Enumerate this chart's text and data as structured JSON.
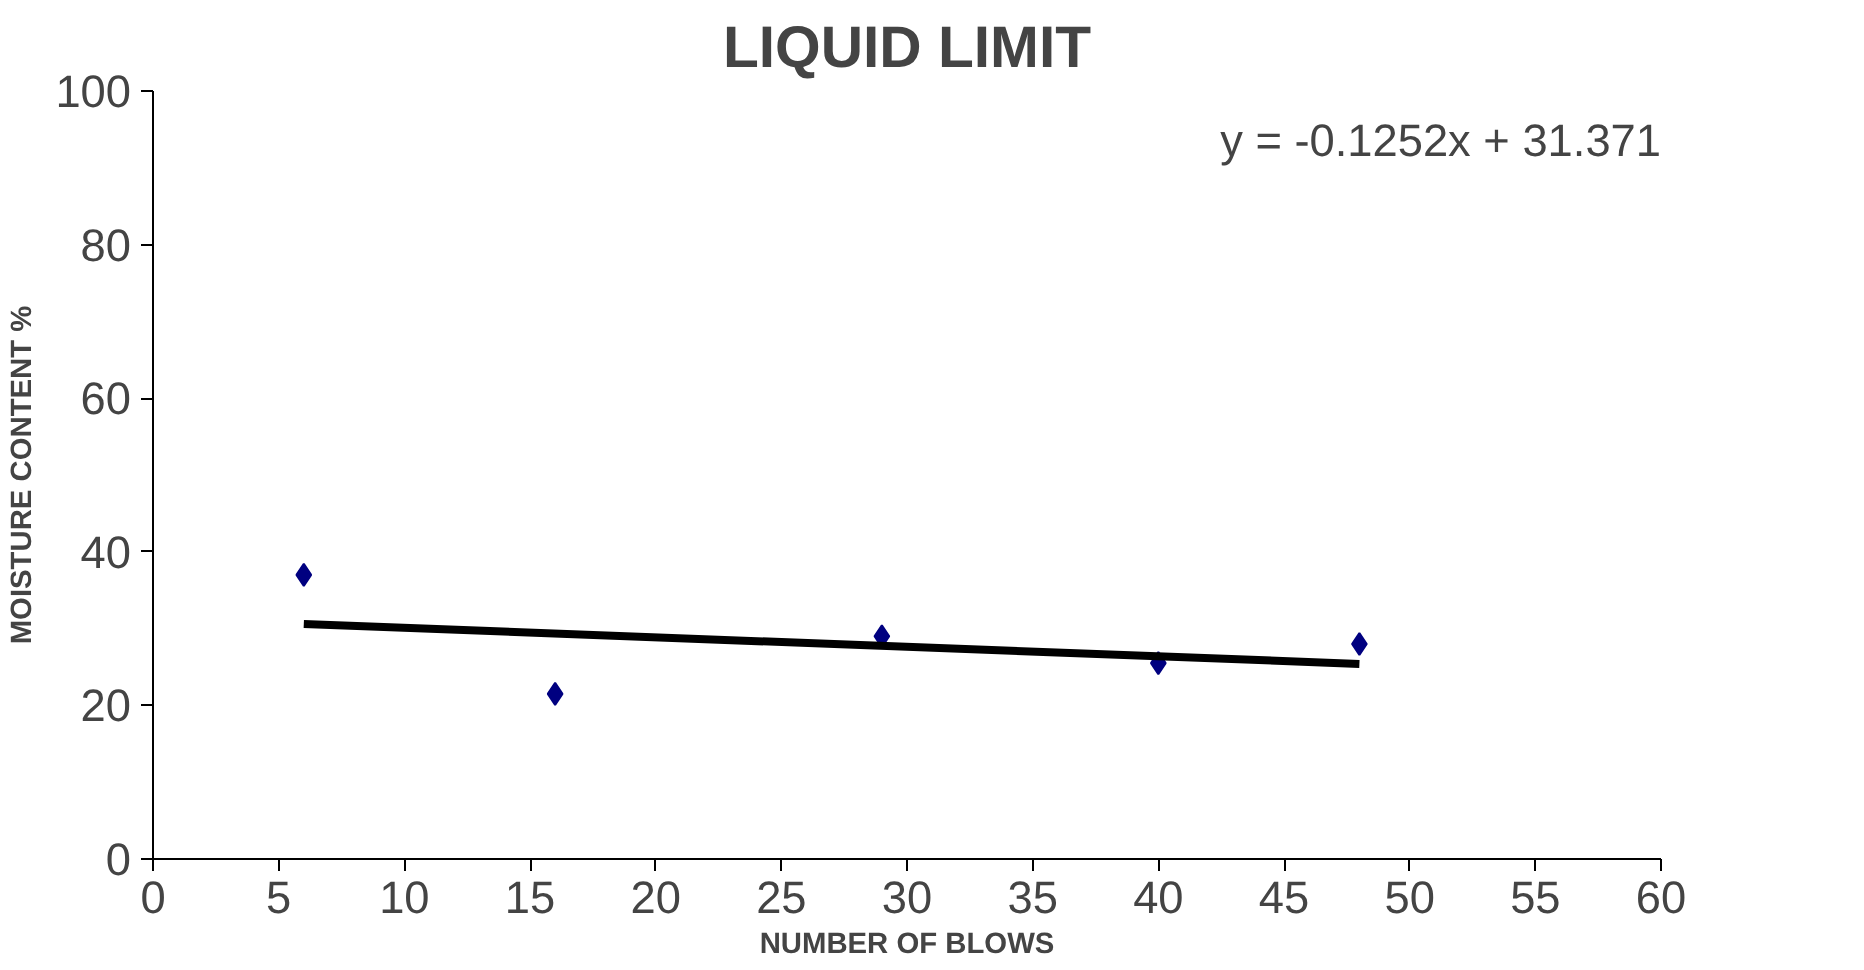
{
  "chart_data": {
    "type": "scatter",
    "title": "LIQUID LIMIT",
    "xlabel": "NUMBER OF BLOWS",
    "ylabel": "MOISTURE CONTENT %",
    "annotations": [
      "y = -0.1252x + 31.371"
    ],
    "series": [
      {
        "color": "#000080",
        "marker": "diamond",
        "x": [
          6,
          16,
          29,
          40,
          48
        ],
        "values": [
          37,
          21.5,
          29,
          25.5,
          28
        ]
      },
      {
        "type": "line",
        "color": "#000000",
        "line_style": "solid",
        "marker": "none",
        "x": [
          6,
          48
        ],
        "values": [
          30.6,
          25.4
        ]
      }
    ],
    "xlim": [
      0,
      60
    ],
    "xticks": [
      0,
      5,
      10,
      15,
      20,
      25,
      30,
      35,
      40,
      45,
      50,
      55,
      60
    ],
    "ylim": [
      0,
      100
    ],
    "yticks": [
      0,
      20,
      40,
      60,
      80,
      100
    ],
    "grid": false
  }
}
